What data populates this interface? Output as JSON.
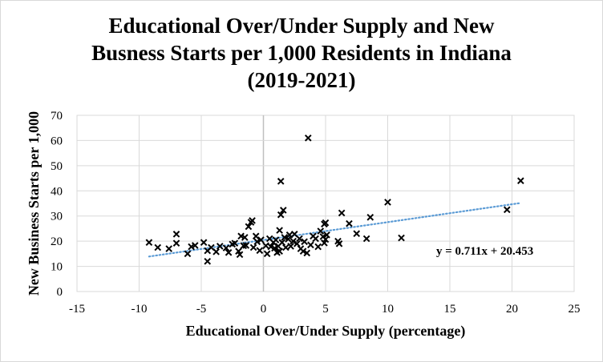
{
  "chart_data": {
    "type": "scatter",
    "title_lines": [
      "Educational Over/Under Supply and New",
      "Busness Starts per 1,000 Residents in Indiana",
      "(2019-2021)"
    ],
    "xlabel": "Educational Over/Under Supply (percentage)",
    "ylabel": "New Business Starts per 1,000",
    "xlim": [
      -15,
      25
    ],
    "ylim": [
      0,
      70
    ],
    "x_ticks": [
      -15,
      -10,
      -5,
      0,
      5,
      10,
      15,
      20,
      25
    ],
    "y_ticks": [
      0,
      10,
      20,
      30,
      40,
      50,
      60,
      70
    ],
    "grid": true,
    "marker": "x",
    "marker_color": "#000000",
    "trendline": {
      "slope": 0.711,
      "intercept": 20.453,
      "x_range": [
        -9.2,
        20.7
      ],
      "color": "#5b9bd5",
      "style": "dotted",
      "equation_label": "y = 0.711x + 20.453"
    },
    "points": [
      [
        -9.2,
        19.5
      ],
      [
        -8.5,
        17.5
      ],
      [
        -7.6,
        17.0
      ],
      [
        -7.0,
        19.2
      ],
      [
        -7.0,
        22.8
      ],
      [
        -6.1,
        15.0
      ],
      [
        -5.8,
        17.8
      ],
      [
        -5.5,
        18.3
      ],
      [
        -4.8,
        19.5
      ],
      [
        -4.5,
        16.2
      ],
      [
        -4.5,
        12.0
      ],
      [
        -4.2,
        17.5
      ],
      [
        -3.8,
        15.8
      ],
      [
        -3.5,
        18.0
      ],
      [
        -3.0,
        17.3
      ],
      [
        -2.8,
        15.5
      ],
      [
        -2.5,
        18.8
      ],
      [
        -2.3,
        19.2
      ],
      [
        -2.0,
        16.0
      ],
      [
        -1.9,
        14.7
      ],
      [
        -1.8,
        22.0
      ],
      [
        -1.6,
        18.2
      ],
      [
        -1.5,
        21.5
      ],
      [
        -1.4,
        18.3
      ],
      [
        -1.2,
        25.8
      ],
      [
        -1.0,
        27.5
      ],
      [
        -0.9,
        28.2
      ],
      [
        -0.8,
        17.5
      ],
      [
        -0.6,
        22.0
      ],
      [
        -0.5,
        19.8
      ],
      [
        -0.3,
        16.3
      ],
      [
        -0.2,
        20.5
      ],
      [
        0.2,
        18.2
      ],
      [
        0.3,
        15.0
      ],
      [
        0.5,
        21.0
      ],
      [
        0.6,
        17.8
      ],
      [
        0.8,
        19.5
      ],
      [
        0.9,
        17.2
      ],
      [
        1.0,
        20.5
      ],
      [
        1.1,
        15.5
      ],
      [
        1.2,
        18.0
      ],
      [
        1.3,
        16.0
      ],
      [
        1.3,
        24.3
      ],
      [
        1.4,
        30.5
      ],
      [
        1.4,
        43.8
      ],
      [
        1.5,
        19.5
      ],
      [
        1.6,
        32.3
      ],
      [
        1.7,
        21.5
      ],
      [
        1.8,
        17.5
      ],
      [
        2.0,
        20.8
      ],
      [
        2.1,
        22.5
      ],
      [
        2.2,
        18.0
      ],
      [
        2.4,
        20.0
      ],
      [
        2.5,
        22.8
      ],
      [
        2.7,
        19.0
      ],
      [
        2.9,
        21.0
      ],
      [
        3.0,
        17.0
      ],
      [
        3.2,
        16.0
      ],
      [
        3.3,
        19.8
      ],
      [
        3.5,
        15.3
      ],
      [
        3.6,
        61.0
      ],
      [
        3.8,
        18.5
      ],
      [
        4.0,
        22.0
      ],
      [
        4.2,
        21.0
      ],
      [
        4.4,
        17.8
      ],
      [
        4.6,
        24.0
      ],
      [
        4.8,
        21.8
      ],
      [
        4.9,
        26.8
      ],
      [
        4.9,
        19.3
      ],
      [
        5.0,
        20.7
      ],
      [
        5.0,
        27.3
      ],
      [
        5.1,
        22.5
      ],
      [
        6.0,
        20.0
      ],
      [
        6.1,
        19.0
      ],
      [
        6.3,
        31.2
      ],
      [
        6.9,
        27.0
      ],
      [
        7.5,
        23.0
      ],
      [
        8.3,
        21.0
      ],
      [
        8.6,
        29.5
      ],
      [
        10.0,
        35.5
      ],
      [
        11.1,
        21.3
      ],
      [
        19.6,
        32.5
      ],
      [
        20.7,
        44.0
      ]
    ]
  }
}
